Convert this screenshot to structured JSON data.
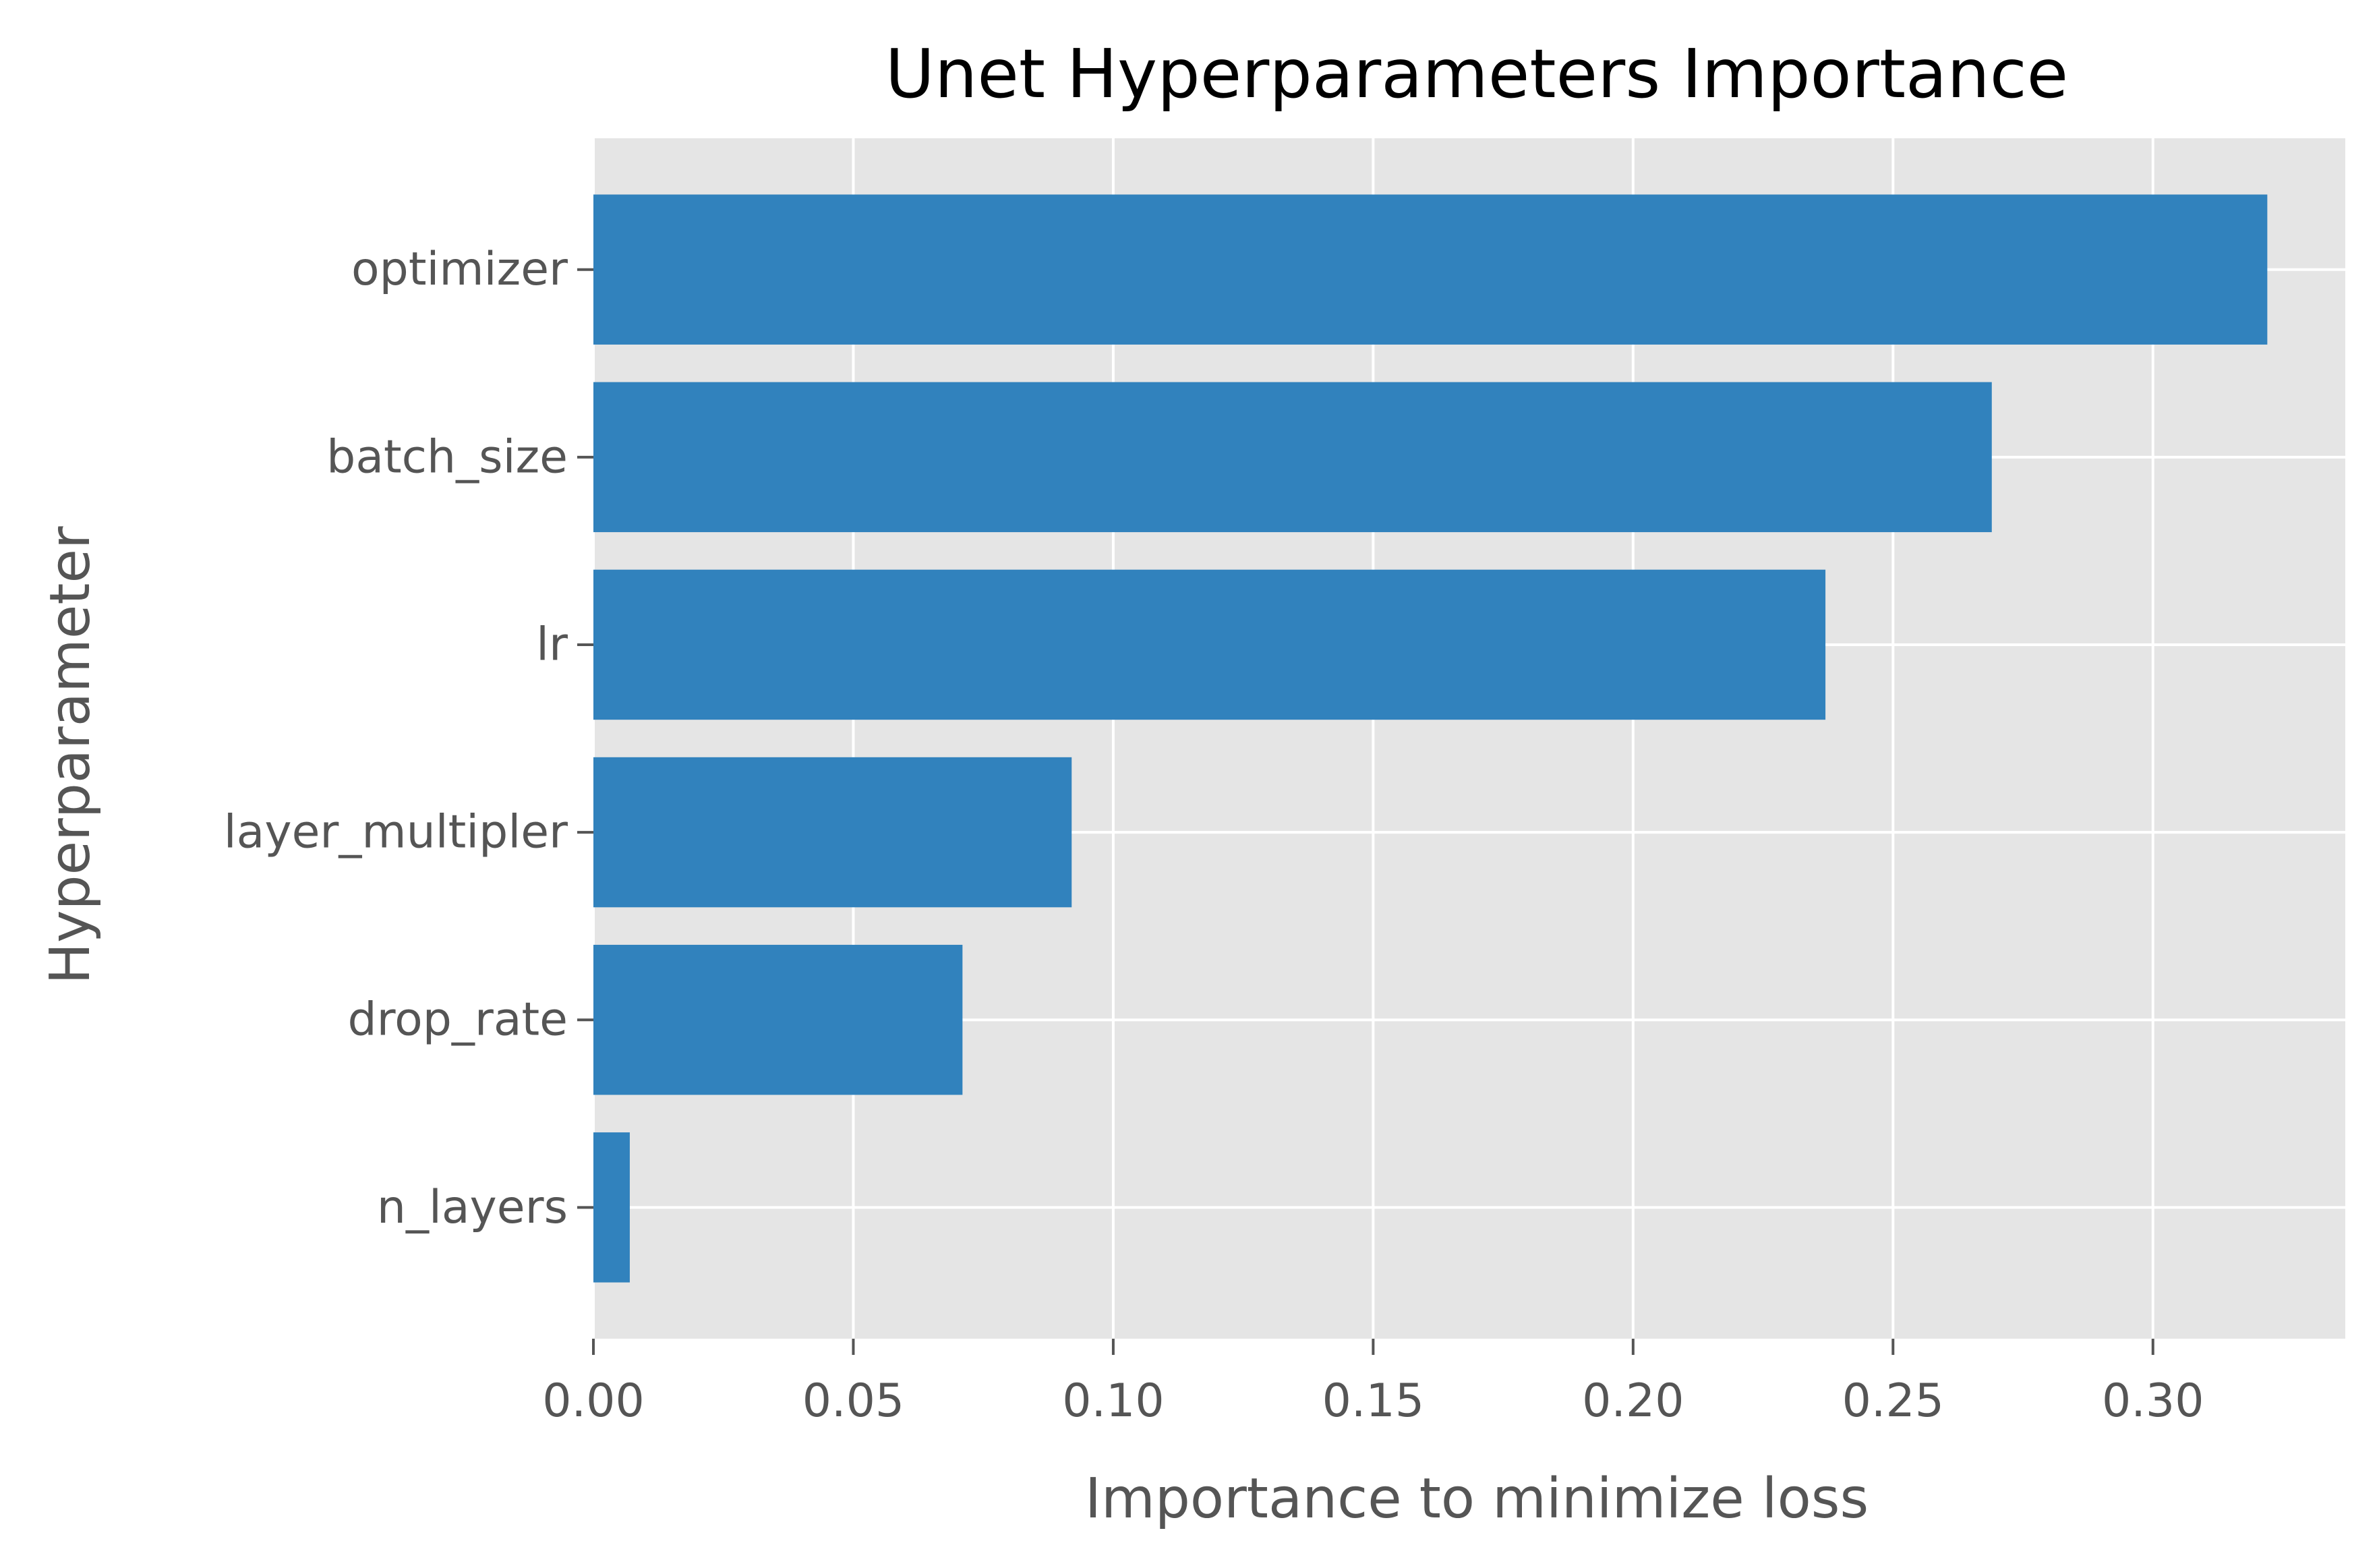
{
  "chart_data": {
    "type": "bar",
    "orientation": "horizontal",
    "title": "Unet Hyperparameters Importance",
    "xlabel": "Importance to minimize loss",
    "ylabel": "Hyperparameter",
    "categories": [
      "optimizer",
      "batch_size",
      "lr",
      "layer_multipler",
      "drop_rate",
      "n_layers"
    ],
    "values": [
      0.322,
      0.269,
      0.237,
      0.092,
      0.071,
      0.007
    ],
    "xlim": [
      0.0,
      0.337
    ],
    "xticks": [
      0.0,
      0.05,
      0.1,
      0.15,
      0.2,
      0.25,
      0.3
    ],
    "xtick_labels": [
      "0.00",
      "0.05",
      "0.10",
      "0.15",
      "0.20",
      "0.25",
      "0.30"
    ],
    "grid": true,
    "legend": "none",
    "bar_color": "#3182bd",
    "plot_background": "#e5e5e5",
    "grid_color": "#ffffff"
  }
}
